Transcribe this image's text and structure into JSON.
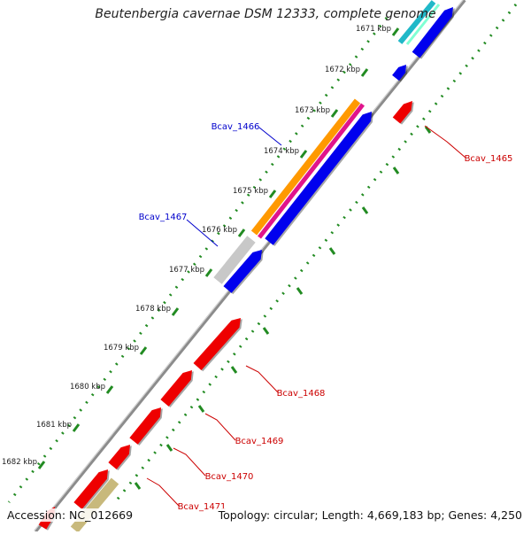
{
  "title": "Beutenbergia cavernae DSM 12333, complete genome",
  "footer": {
    "accession": "Accession: NC_012669",
    "topology": "Topology: circular; Length: 4,669,183 bp; Genes: 4,250"
  },
  "ticks": [
    "1671 kbp",
    "1672 kbp",
    "1673 kbp",
    "1674 kbp",
    "1675 kbp",
    "1676 kbp",
    "1677 kbp",
    "1678 kbp",
    "1679 kbp",
    "1680 kbp",
    "1681 kbp",
    "1682 kbp"
  ],
  "colors": {
    "forward_cds": "#0000ee",
    "reverse_cds": "#ee0000",
    "label_blue": "#0000cc",
    "label_red": "#cc0000",
    "tick": "#228b22",
    "backbone": "#8c8c8c",
    "orange": "#ff9900",
    "magenta": "#e0148c",
    "grey": "#c8c8c8",
    "olive": "#c8b97c",
    "cyan": "#20b8c8"
  },
  "gene_labels": {
    "left": [
      {
        "name": "Bcav_1466"
      },
      {
        "name": "Bcav_1467"
      }
    ],
    "right": [
      {
        "name": "Bcav_1465"
      },
      {
        "name": "Bcav_1468"
      },
      {
        "name": "Bcav_1469"
      },
      {
        "name": "Bcav_1470"
      },
      {
        "name": "Bcav_1471"
      }
    ]
  }
}
